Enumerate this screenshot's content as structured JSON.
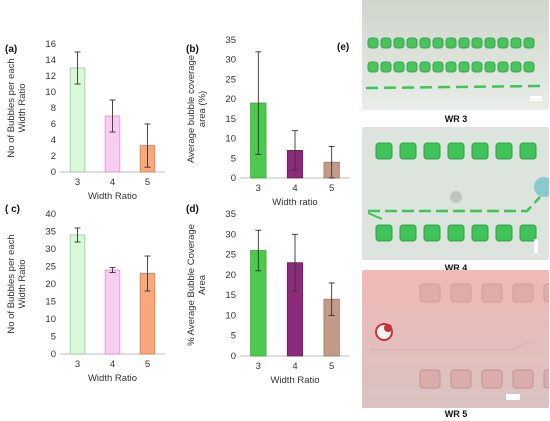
{
  "chart_data": [
    {
      "type": "bar",
      "panel_label": "(a)",
      "categories": [
        "3",
        "4",
        "5"
      ],
      "values": [
        13,
        7,
        3.3
      ],
      "errors": [
        2,
        2,
        2.7
      ],
      "colors": [
        "#d9f7d9",
        "#f8cdf0",
        "#f8a97c"
      ],
      "edge_colors": [
        "#8fd08f",
        "#d990cc",
        "#d9794a"
      ],
      "xlabel": "Width Ratio",
      "ylabel": "No of Bubbles per each Width Ratio",
      "ylabel_lines": [
        "No of Bubbles per each",
        "Width Ratio"
      ],
      "ylim": [
        0,
        16
      ],
      "yticks": [
        0,
        2,
        4,
        6,
        8,
        10,
        12,
        14,
        16
      ],
      "grid": false
    },
    {
      "type": "bar",
      "panel_label": "(b)",
      "categories": [
        "3",
        "4",
        "5"
      ],
      "values": [
        19,
        7,
        4
      ],
      "errors": [
        13,
        5,
        4
      ],
      "colors": [
        "#4dc94d",
        "#8b2a7a",
        "#c29a87"
      ],
      "edge_colors": [
        "#3aa63a",
        "#6e1f61",
        "#a07a68"
      ],
      "xlabel": "Width ratio",
      "ylabel": "Average bubble coverage area (%)",
      "ylabel_lines": [
        "Average bubble coverage",
        "area (%)"
      ],
      "ylim": [
        0,
        35
      ],
      "yticks": [
        0,
        5,
        10,
        15,
        20,
        25,
        30,
        35
      ],
      "grid": false
    },
    {
      "type": "bar",
      "panel_label": "( c)",
      "categories": [
        "3",
        "4",
        "5"
      ],
      "values": [
        34,
        24,
        23
      ],
      "errors": [
        2,
        0.7,
        5
      ],
      "colors": [
        "#d9f7d9",
        "#f8cdf0",
        "#f8a97c"
      ],
      "edge_colors": [
        "#8fd08f",
        "#d990cc",
        "#d9794a"
      ],
      "xlabel": "Width Ratio",
      "ylabel": "No of Bubbles per each Width Ratio",
      "ylabel_lines": [
        "No of Bubbles per each",
        "Width Ratio"
      ],
      "ylim": [
        0,
        40
      ],
      "yticks": [
        0,
        5,
        10,
        15,
        20,
        25,
        30,
        35,
        40
      ],
      "grid": false
    },
    {
      "type": "bar",
      "panel_label": "(d)",
      "categories": [
        "3",
        "4",
        "5"
      ],
      "values": [
        26,
        23,
        14
      ],
      "errors": [
        5,
        7,
        4
      ],
      "colors": [
        "#4dc94d",
        "#8b2a7a",
        "#c29a87"
      ],
      "edge_colors": [
        "#3aa63a",
        "#6e1f61",
        "#a07a68"
      ],
      "xlabel": "Width Ratio",
      "ylabel": "% Average Bubble Coverage Area",
      "ylabel_lines": [
        "% Average Bubble Coverage",
        "Area"
      ],
      "ylim": [
        0,
        35
      ],
      "yticks": [
        0,
        5,
        10,
        15,
        20,
        25,
        30,
        35
      ],
      "grid": false
    }
  ],
  "images": {
    "panel_label": "(e)",
    "photos": [
      {
        "label": "WR 3",
        "tint": "#dfe3dc",
        "bubble_color": "#2fbf4a"
      },
      {
        "label": "WR 4",
        "tint": "#dde3dd",
        "bubble_color": "#2fbf4a"
      },
      {
        "label": "WR 5",
        "tint": "#e7c2c0",
        "bubble_color": "#d9a6a4"
      }
    ]
  }
}
